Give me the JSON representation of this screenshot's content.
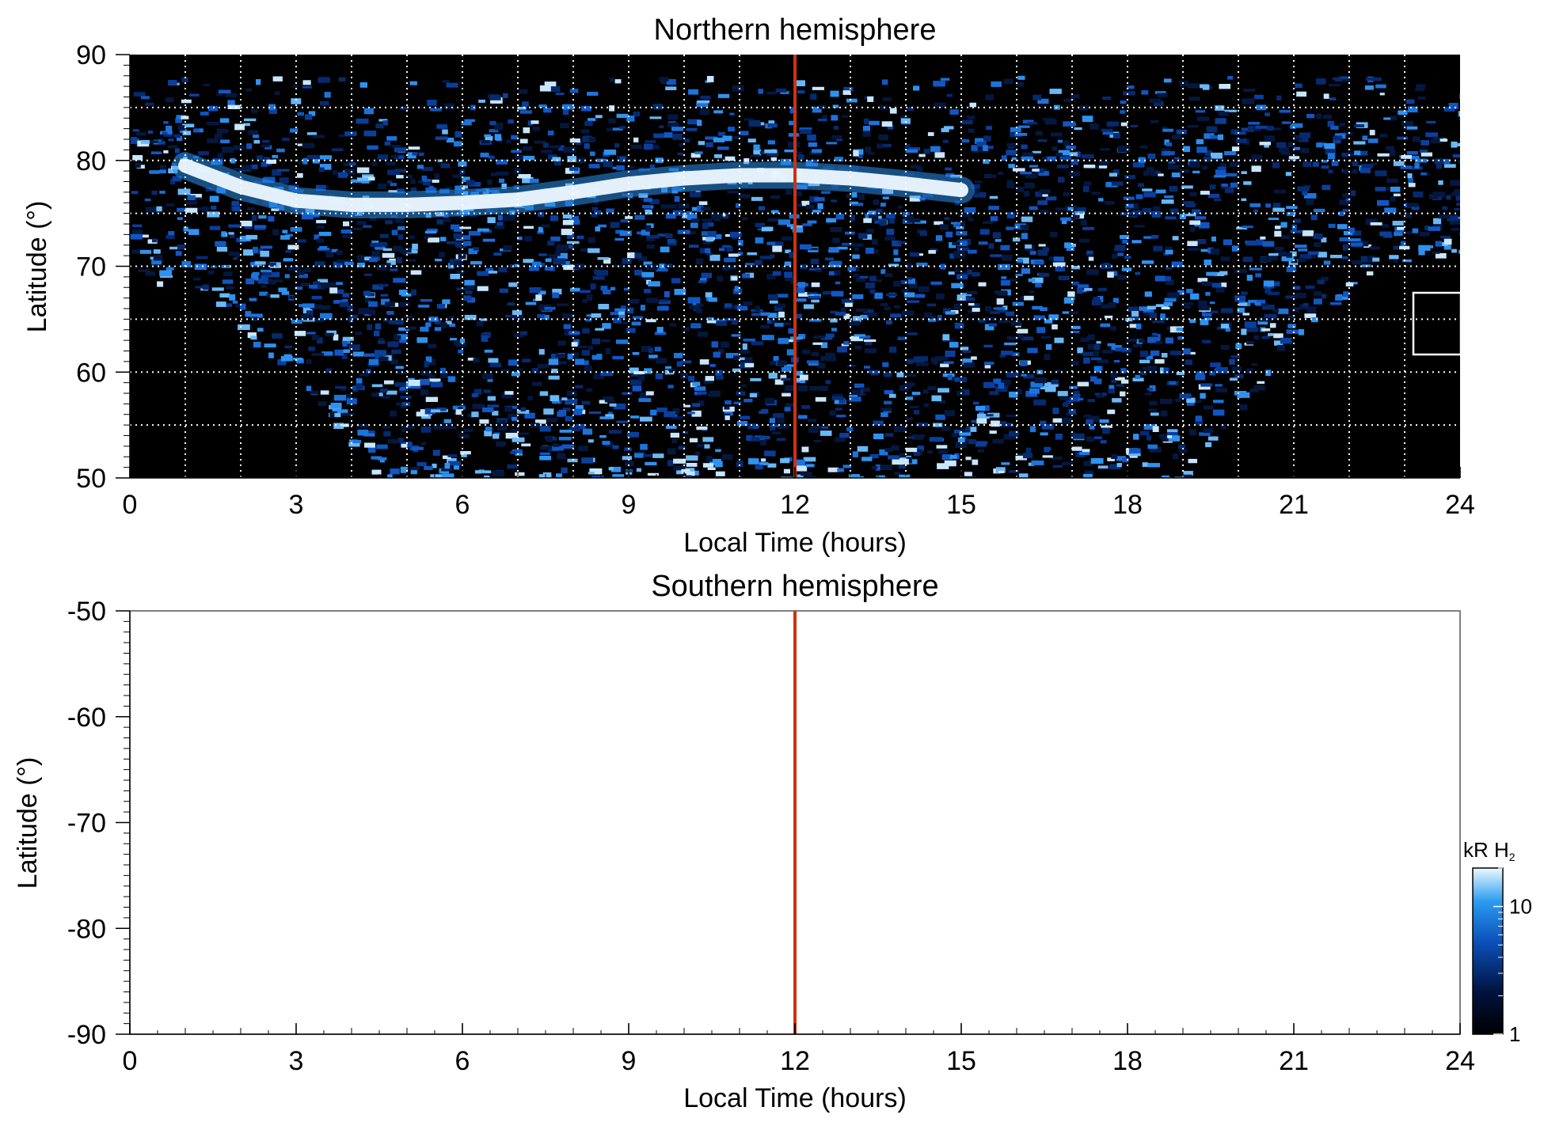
{
  "colors": {
    "panel_background_north": "#000000",
    "panel_background_south": "#ffffff",
    "grid": "#ffffff",
    "noon_line": "#cc3311",
    "emission_low": "#00123d",
    "emission_mid": "#1f7fe0",
    "emission_high": "#eef8ff"
  },
  "chart_data": [
    {
      "type": "heatmap",
      "title": "Northern hemisphere",
      "xlabel": "Local Time (hours)",
      "ylabel": "Latitude (°)",
      "xlim": [
        0,
        24
      ],
      "ylim": [
        50,
        90
      ],
      "x_ticks": [
        "0",
        "3",
        "6",
        "9",
        "12",
        "15",
        "18",
        "21",
        "24"
      ],
      "y_ticks": [
        "50",
        "60",
        "70",
        "80",
        "90"
      ],
      "grid": true,
      "grid_x_step": 1,
      "grid_y_step": 5,
      "noon_line_x": 12,
      "coverage_lower_edge": [
        {
          "x": 0,
          "y": 70
        },
        {
          "x": 1,
          "y": 67
        },
        {
          "x": 2,
          "y": 63.5
        },
        {
          "x": 3,
          "y": 60
        },
        {
          "x": 3.7,
          "y": 55
        },
        {
          "x": 4.3,
          "y": 50
        },
        {
          "x": 19.2,
          "y": 50
        },
        {
          "x": 19.8,
          "y": 55
        },
        {
          "x": 20.5,
          "y": 60
        },
        {
          "x": 21.3,
          "y": 64
        },
        {
          "x": 22.3,
          "y": 68.5
        },
        {
          "x": 23,
          "y": 70.5
        },
        {
          "x": 24,
          "y": 70.2
        }
      ],
      "auroral_oval": [
        {
          "x": 1,
          "y": 79.5
        },
        {
          "x": 2,
          "y": 77.5
        },
        {
          "x": 3,
          "y": 76.2
        },
        {
          "x": 4,
          "y": 75.8
        },
        {
          "x": 5,
          "y": 75.8
        },
        {
          "x": 6,
          "y": 76
        },
        {
          "x": 7,
          "y": 76.3
        },
        {
          "x": 8,
          "y": 77
        },
        {
          "x": 9,
          "y": 77.8
        },
        {
          "x": 10,
          "y": 78.3
        },
        {
          "x": 11,
          "y": 78.6
        },
        {
          "x": 12,
          "y": 78.6
        },
        {
          "x": 13,
          "y": 78.3
        },
        {
          "x": 14,
          "y": 77.8
        },
        {
          "x": 15,
          "y": 77.2
        }
      ],
      "intensity_unit": "kR H₂"
    },
    {
      "type": "heatmap",
      "title": "Southern hemisphere",
      "xlabel": "Local Time (hours)",
      "ylabel": "Latitude (°)",
      "xlim": [
        0,
        24
      ],
      "ylim": [
        -90,
        -50
      ],
      "x_ticks": [
        "0",
        "3",
        "6",
        "9",
        "12",
        "15",
        "18",
        "21",
        "24"
      ],
      "y_ticks": [
        "-50",
        "-60",
        "-70",
        "-80",
        "-90"
      ],
      "grid": false,
      "noon_line_x": 12,
      "colorbar": {
        "label": "kR H",
        "label_subscript": "2",
        "scale": "log",
        "range": [
          1,
          20
        ],
        "tick_labels": [
          "1",
          "10"
        ],
        "tick_values": [
          1,
          10
        ]
      }
    }
  ]
}
